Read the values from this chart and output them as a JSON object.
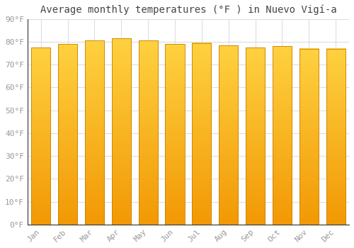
{
  "title": "Average monthly temperatures (°F ) in Nuevo Vigí-a",
  "months": [
    "Jan",
    "Feb",
    "Mar",
    "Apr",
    "May",
    "Jun",
    "Jul",
    "Aug",
    "Sep",
    "Oct",
    "Nov",
    "Dec"
  ],
  "values": [
    77.5,
    79.0,
    80.5,
    81.5,
    80.5,
    79.0,
    79.5,
    78.5,
    77.5,
    78.0,
    77.0,
    77.0
  ],
  "bar_color": "#FFA500",
  "bar_color_top": "#FFD040",
  "bar_color_bottom": "#F59B00",
  "bar_edge_color": "#C88000",
  "background_color": "#FFFFFF",
  "plot_bg_color": "#FFFFFF",
  "grid_color": "#DDDDDD",
  "title_fontsize": 10,
  "tick_fontsize": 8,
  "tick_color": "#999999",
  "ylim": [
    0,
    90
  ],
  "yticks": [
    0,
    10,
    20,
    30,
    40,
    50,
    60,
    70,
    80,
    90
  ]
}
